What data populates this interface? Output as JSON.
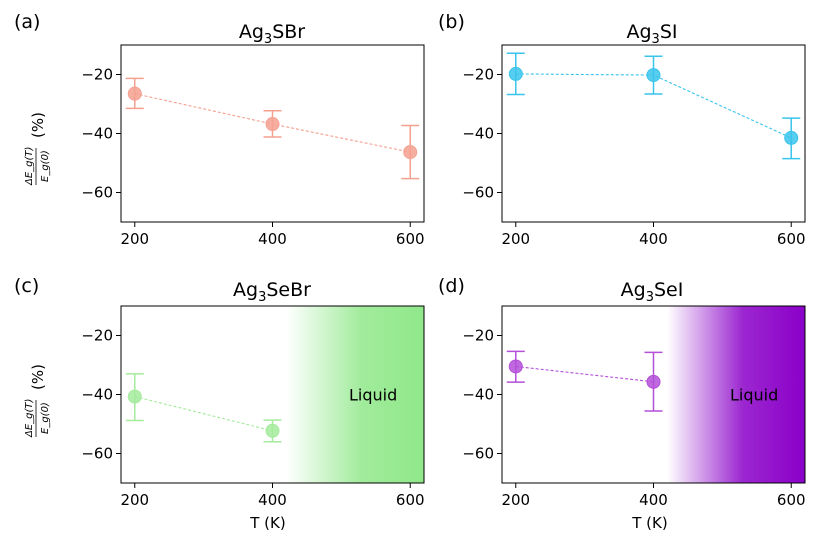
{
  "figure": {
    "xlabel": "T (K)",
    "ylabel_numerator": "ΔE_g(T)",
    "ylabel_denominator": "E_g(0)",
    "ylabel_unit": "(%)"
  },
  "chart_data": [
    {
      "type": "scatter",
      "panel": "(a)",
      "title_main": "Ag",
      "title_sub": "3",
      "title_rest": "SBr",
      "color": "#f4a090",
      "x": [
        200,
        400,
        600
      ],
      "y": [
        -26.5,
        -36.8,
        -46.3
      ],
      "yerr_upper": [
        -21.3,
        -32.3,
        -37.3
      ],
      "yerr_lower": [
        -31.5,
        -41.2,
        -55.3
      ],
      "xlim": [
        180,
        620
      ],
      "ylim": [
        -70,
        -10
      ],
      "xticks": [
        "200",
        "400",
        "600"
      ],
      "yticks": [
        "−20",
        "−40",
        "−60"
      ],
      "liquid": null
    },
    {
      "type": "scatter",
      "panel": "(b)",
      "title_main": "Ag",
      "title_sub": "3",
      "title_rest": "SI",
      "color": "#39c4ec",
      "x": [
        200,
        400,
        600
      ],
      "y": [
        -19.8,
        -20.2,
        -41.5
      ],
      "yerr_upper": [
        -12.8,
        -13.8,
        -34.8
      ],
      "yerr_lower": [
        -26.8,
        -26.6,
        -48.5
      ],
      "xlim": [
        180,
        620
      ],
      "ylim": [
        -70,
        -10
      ],
      "xticks": [
        "200",
        "400",
        "600"
      ],
      "yticks": [
        "−20",
        "−40",
        "−60"
      ],
      "liquid": null
    },
    {
      "type": "scatter",
      "panel": "(c)",
      "title_main": "Ag",
      "title_sub": "3",
      "title_rest": "SeBr",
      "color": "#a4eb9c",
      "x": [
        200,
        400
      ],
      "y": [
        -40.7,
        -52.3
      ],
      "yerr_upper": [
        -33.0,
        -48.7
      ],
      "yerr_lower": [
        -48.8,
        -56.0
      ],
      "xlim": [
        180,
        620
      ],
      "ylim": [
        -70,
        -10
      ],
      "xticks": [
        "200",
        "400",
        "600"
      ],
      "yticks": [
        "−20",
        "−40",
        "−60"
      ],
      "liquid": {
        "label": "Liquid",
        "start": 420,
        "color": "#90e88a"
      }
    },
    {
      "type": "scatter",
      "panel": "(d)",
      "title_main": "Ag",
      "title_sub": "3",
      "title_rest": "SeI",
      "color": "#b44fd9",
      "x": [
        200,
        400
      ],
      "y": [
        -30.5,
        -35.7
      ],
      "yerr_upper": [
        -25.4,
        -25.7
      ],
      "yerr_lower": [
        -35.8,
        -45.6
      ],
      "xlim": [
        180,
        620
      ],
      "ylim": [
        -70,
        -10
      ],
      "xticks": [
        "200",
        "400",
        "600"
      ],
      "yticks": [
        "−20",
        "−40",
        "−60"
      ],
      "liquid": {
        "label": "Liquid",
        "start": 420,
        "color": "#8a00c8"
      }
    }
  ]
}
